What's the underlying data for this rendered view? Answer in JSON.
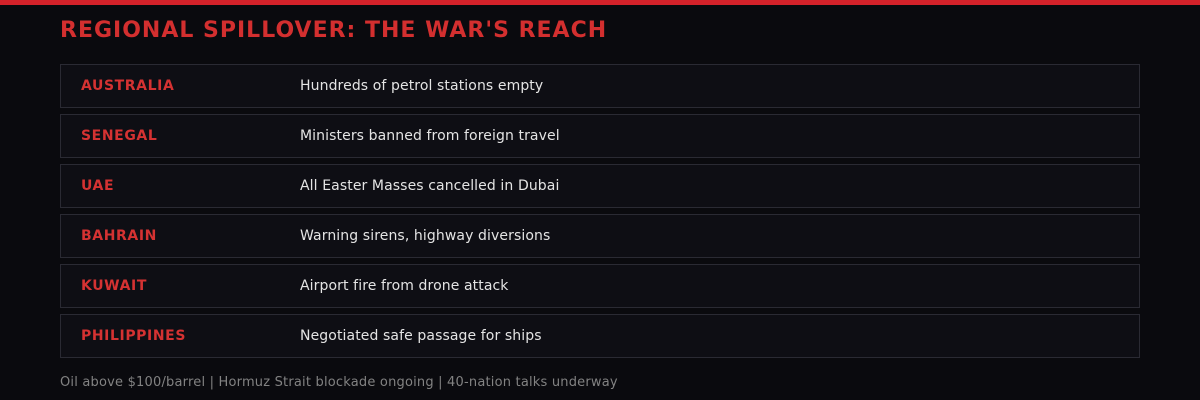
{
  "header": {
    "title": "REGIONAL SPILLOVER: THE WAR'S REACH"
  },
  "rows": [
    {
      "country": "AUSTRALIA",
      "headline": "Hundreds of petrol stations empty"
    },
    {
      "country": "SENEGAL",
      "headline": "Ministers banned from foreign travel"
    },
    {
      "country": "UAE",
      "headline": "All Easter Masses cancelled in Dubai"
    },
    {
      "country": "BAHRAIN",
      "headline": "Warning sirens, highway diversions"
    },
    {
      "country": "KUWAIT",
      "headline": "Airport fire from drone attack"
    },
    {
      "country": "PHILIPPINES",
      "headline": "Negotiated safe passage for ships"
    }
  ],
  "footer": {
    "ticker": "Oil above $100/barrel | Hormuz Strait blockade ongoing | 40-nation talks underway"
  },
  "colors": {
    "page_background": "#0a0a0e",
    "top_bar": "#d4222a",
    "title_red": "#d32f2f",
    "country_red": "#d53232",
    "headline_text": "#e4e4e4",
    "row_background": "#0e0e14",
    "row_border": "#2a2a33",
    "footer_text": "#828282"
  }
}
